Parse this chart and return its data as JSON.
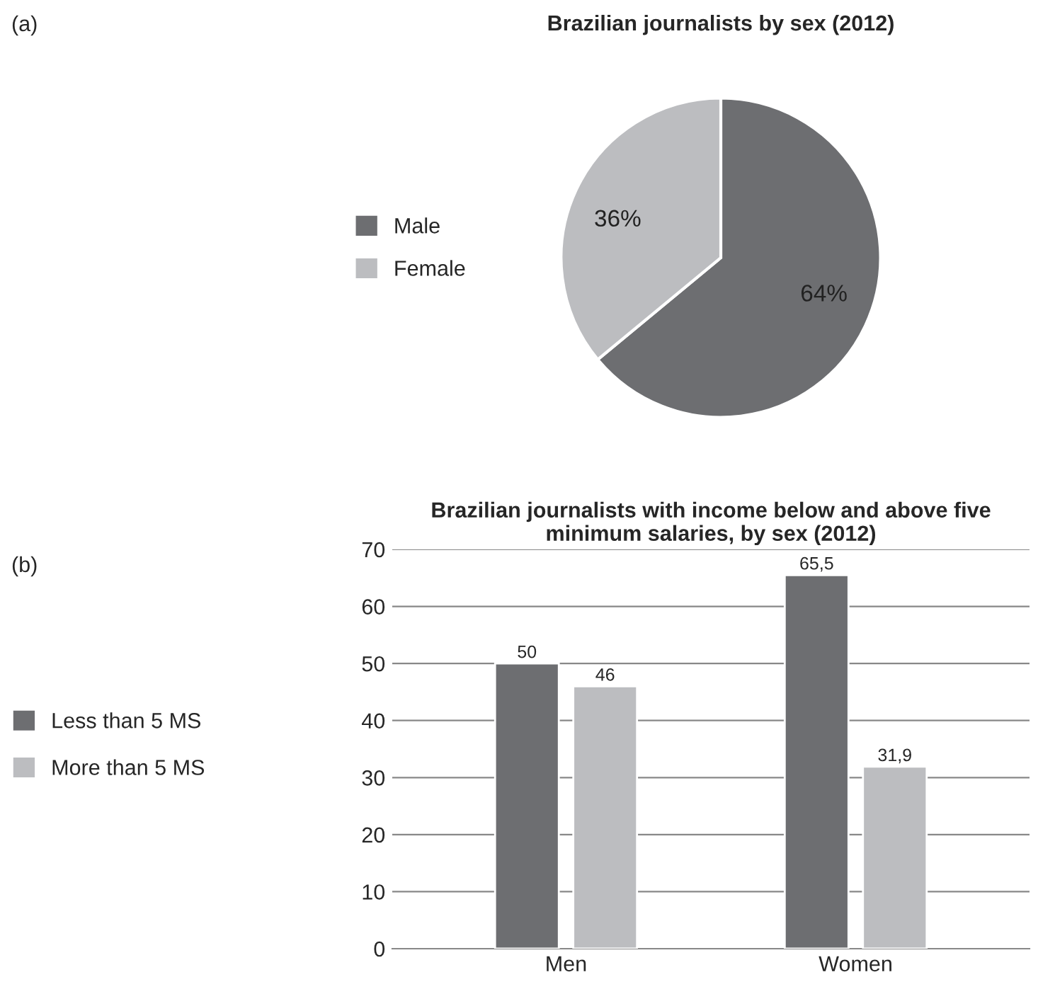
{
  "chart_data": [
    {
      "type": "pie",
      "title": "Brazilian journalists by sex (2012)",
      "categories": [
        "Male",
        "Female"
      ],
      "values": [
        64,
        36
      ],
      "colors": [
        "#6d6e71",
        "#bcbdc0"
      ],
      "value_labels": [
        "64%",
        "36%"
      ],
      "legend": "left",
      "annotations": [
        "(a)"
      ]
    },
    {
      "type": "bar",
      "title": "Brazilian journalists with income below and above five minimum salaries, by sex (2012)",
      "categories": [
        "Men",
        "Women"
      ],
      "series": [
        {
          "name": "Less than 5 MS",
          "color": "#6d6e71",
          "values": [
            50,
            65.5
          ],
          "value_labels": [
            "50",
            "65,5"
          ]
        },
        {
          "name": "More than 5 MS",
          "color": "#bcbdc0",
          "values": [
            46,
            31.9
          ],
          "value_labels": [
            "46",
            "31,9"
          ]
        }
      ],
      "ylim": [
        0,
        70
      ],
      "yticks": [
        0,
        10,
        20,
        30,
        40,
        50,
        60,
        70
      ],
      "grid": "y",
      "legend": "left",
      "annotations": [
        "(b)"
      ]
    }
  ]
}
